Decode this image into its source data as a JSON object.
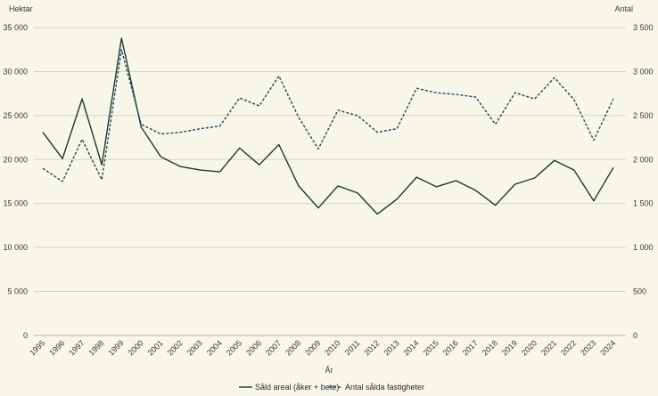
{
  "chart_data": {
    "type": "line",
    "title": "",
    "xlabel": "År",
    "y_left_label": "Hektar",
    "y_right_label": "Antal",
    "y_left_lim": [
      0,
      35000
    ],
    "y_right_lim": [
      0,
      3500
    ],
    "y_left_ticks": [
      "0",
      "5 000",
      "10 000",
      "15 000",
      "20 000",
      "25 000",
      "30 000",
      "35 000"
    ],
    "y_right_ticks": [
      "0",
      "500",
      "1 000",
      "1 500",
      "2 000",
      "2 500",
      "3 000",
      "3 500"
    ],
    "grid": true,
    "legend_position": "bottom",
    "categories": [
      "1995",
      "1996",
      "1997",
      "1998",
      "1999",
      "2000",
      "2001",
      "2002",
      "2003",
      "2004",
      "2005",
      "2006",
      "2007",
      "2008",
      "2009",
      "2010",
      "2011",
      "2012",
      "2013",
      "2014",
      "2015",
      "2016",
      "2017",
      "2018",
      "2019",
      "2020",
      "2021",
      "2022",
      "2023",
      "2024"
    ],
    "series": [
      {
        "name": "Såld areal (åker + bete)",
        "axis": "left",
        "style": "solid",
        "color": "#1b3a2f",
        "values": [
          23100,
          20100,
          26900,
          19400,
          33800,
          23700,
          20300,
          19200,
          18800,
          18600,
          21300,
          19400,
          21700,
          17000,
          14500,
          17000,
          16200,
          13800,
          15500,
          18000,
          16900,
          17600,
          16500,
          14800,
          17200,
          17900,
          19900,
          18800,
          15300,
          19100
        ]
      },
      {
        "name": "Antal sålda fastigheter",
        "axis": "right",
        "style": "dashed",
        "color": "#1f4a5c",
        "values": [
          1900,
          1750,
          2230,
          1770,
          3250,
          2400,
          2290,
          2310,
          2350,
          2380,
          2700,
          2610,
          2950,
          2480,
          2120,
          2560,
          2500,
          2310,
          2350,
          2810,
          2760,
          2740,
          2710,
          2400,
          2760,
          2690,
          2930,
          2680,
          2220,
          2690
        ]
      }
    ]
  }
}
